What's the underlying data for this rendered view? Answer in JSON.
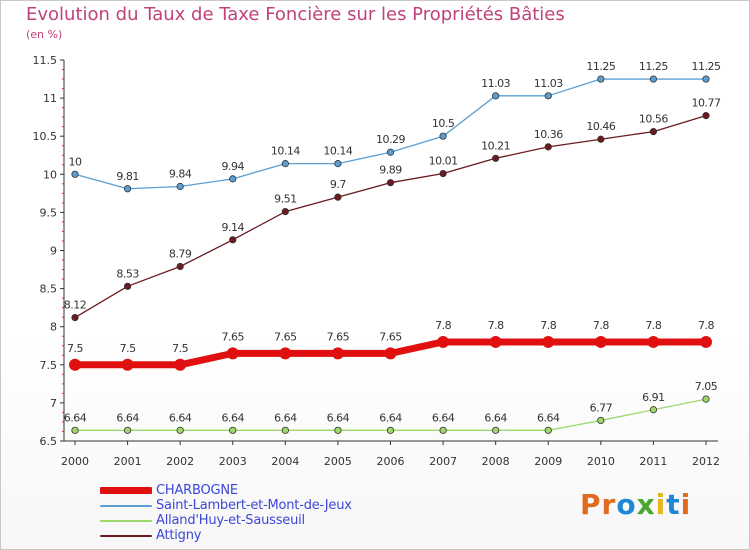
{
  "title": "Evolution du Taux de Taxe Foncière sur les Propriétés Bâties",
  "unit_label": "(en %)",
  "brand": {
    "text": "Proxiti",
    "letter_colors": [
      "#e06a1e",
      "#e06a1e",
      "#1f87d6",
      "#4aa82e",
      "#e7b51c",
      "#1f87d6",
      "#e06a1e"
    ]
  },
  "chart_data": {
    "type": "line",
    "x": [
      "2000",
      "2001",
      "2002",
      "2003",
      "2004",
      "2005",
      "2006",
      "2007",
      "2008",
      "2009",
      "2010",
      "2011",
      "2012"
    ],
    "ylim": [
      6.5,
      11.5
    ],
    "yticks": [
      "6.5",
      "7",
      "7.5",
      "8",
      "8.5",
      "9",
      "9.5",
      "10",
      "10.5",
      "11",
      "11.5"
    ],
    "grid": false,
    "legend_position": "bottom-left",
    "series": [
      {
        "name": "Saint-Lambert-et-Mont-de-Jeux",
        "color": "#5a9fd3",
        "values": [
          10,
          9.81,
          9.84,
          9.94,
          10.14,
          10.14,
          10.29,
          10.5,
          11.03,
          11.03,
          11.25,
          11.25,
          11.25
        ],
        "labels": [
          "10",
          "9.81",
          "9.84",
          "9.94",
          "10.14",
          "10.14",
          "10.29",
          "10.5",
          "11.03",
          "11.03",
          "11.25",
          "11.25",
          "11.25"
        ]
      },
      {
        "name": "Attigny",
        "color": "#6b1a1f",
        "values": [
          8.12,
          8.53,
          8.79,
          9.14,
          9.51,
          9.7,
          9.89,
          10.01,
          10.21,
          10.36,
          10.46,
          10.56,
          10.77
        ],
        "labels": [
          "8.12",
          "8.53",
          "8.79",
          "9.14",
          "9.51",
          "9.7",
          "9.89",
          "10.01",
          "10.21",
          "10.36",
          "10.46",
          "10.56",
          "10.77"
        ]
      },
      {
        "name": "CHARBOGNE",
        "color": "#e01010",
        "values": [
          7.5,
          7.5,
          7.5,
          7.65,
          7.65,
          7.65,
          7.65,
          7.8,
          7.8,
          7.8,
          7.8,
          7.8,
          7.8
        ],
        "labels": [
          "7.5",
          "7.5",
          "7.5",
          "7.65",
          "7.65",
          "7.65",
          "7.65",
          "7.8",
          "7.8",
          "7.8",
          "7.8",
          "7.8",
          "7.8"
        ]
      },
      {
        "name": "Alland'Huy-et-Sausseuil",
        "color": "#9ed86a",
        "values": [
          6.64,
          6.64,
          6.64,
          6.64,
          6.64,
          6.64,
          6.64,
          6.64,
          6.64,
          6.64,
          6.77,
          6.91,
          7.05
        ],
        "labels": [
          "6.64",
          "6.64",
          "6.64",
          "6.64",
          "6.64",
          "6.64",
          "6.64",
          "6.64",
          "6.64",
          "6.64",
          "6.77",
          "6.91",
          "7.05"
        ]
      }
    ]
  },
  "legend": [
    {
      "label": "CHARBOGNE",
      "color": "#e01010",
      "weight": "thick"
    },
    {
      "label": "Saint-Lambert-et-Mont-de-Jeux",
      "color": "#5a9fd3",
      "weight": "thin"
    },
    {
      "label": "Alland'Huy-et-Sausseuil",
      "color": "#9ed86a",
      "weight": "thin"
    },
    {
      "label": "Attigny",
      "color": "#6b1a1f",
      "weight": "thin"
    }
  ]
}
